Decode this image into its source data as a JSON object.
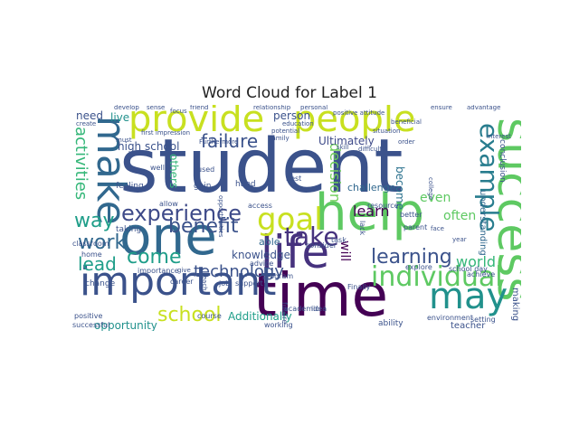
{
  "title": "Word Cloud for Label 1",
  "chart_data": {
    "type": "wordcloud",
    "title": "Word Cloud for Label 1",
    "background": "#ffffff",
    "colormap": "viridis",
    "words": [
      {
        "text": "student",
        "color": "#3b528b"
      },
      {
        "text": "time",
        "color": "#440154"
      },
      {
        "text": "help",
        "color": "#5ec962"
      },
      {
        "text": "one",
        "color": "#31688e"
      },
      {
        "text": "people",
        "color": "#c8e020"
      },
      {
        "text": "important",
        "color": "#3b528b"
      },
      {
        "text": "success",
        "color": "#5ec962"
      },
      {
        "text": "provide",
        "color": "#c8e020"
      },
      {
        "text": "make",
        "color": "#31688e"
      },
      {
        "text": "life",
        "color": "#46327e"
      },
      {
        "text": "individual",
        "color": "#5ec962"
      },
      {
        "text": "example",
        "color": "#287d8e"
      },
      {
        "text": "goal",
        "color": "#c8e020"
      },
      {
        "text": "may",
        "color": "#21918c"
      },
      {
        "text": "experience",
        "color": "#3e4a89"
      },
      {
        "text": "failure",
        "color": "#3b528b"
      },
      {
        "text": "take",
        "color": "#46327e"
      },
      {
        "text": "school",
        "color": "#c8e020"
      },
      {
        "text": "benefit",
        "color": "#3b528b"
      },
      {
        "text": "come",
        "color": "#1f9e89"
      },
      {
        "text": "work",
        "color": "#31688e"
      },
      {
        "text": "lead",
        "color": "#1f9e89"
      },
      {
        "text": "way",
        "color": "#1f9e89"
      },
      {
        "text": "learning",
        "color": "#3b528b"
      },
      {
        "text": "activities",
        "color": "#35b779"
      },
      {
        "text": "technology",
        "color": "#3b528b"
      },
      {
        "text": "decision",
        "color": "#6ece58"
      },
      {
        "text": "learn",
        "color": "#440154"
      },
      {
        "text": "world",
        "color": "#35b779"
      },
      {
        "text": "Additionally",
        "color": "#1f9e89"
      },
      {
        "text": "Ultimately",
        "color": "#3e4a89"
      },
      {
        "text": "opportunity",
        "color": "#21918c"
      },
      {
        "text": "knowledge",
        "color": "#3b528b"
      },
      {
        "text": "high school",
        "color": "#3b528b"
      },
      {
        "text": "will",
        "color": "#440154"
      },
      {
        "text": "often",
        "color": "#5ec962"
      },
      {
        "text": "need",
        "color": "#3b528b"
      },
      {
        "text": "live",
        "color": "#21918c"
      },
      {
        "text": "person",
        "color": "#3b528b"
      },
      {
        "text": "even",
        "color": "#5ec962"
      },
      {
        "text": "become",
        "color": "#2c728e"
      },
      {
        "text": "others",
        "color": "#35b779"
      },
      {
        "text": "challenge",
        "color": "#31688e"
      },
      {
        "text": "making",
        "color": "#3b528b"
      },
      {
        "text": "understanding",
        "color": "#31688e"
      },
      {
        "text": "teacher",
        "color": "#3b528b"
      },
      {
        "text": "able",
        "color": "#31688e"
      },
      {
        "text": "conclusion",
        "color": "#3b528b"
      },
      {
        "text": "gain",
        "color": "#3b528b"
      },
      {
        "text": "hand",
        "color": "#3b528b"
      },
      {
        "text": "feeling",
        "color": "#3b528b"
      },
      {
        "text": "taking",
        "color": "#3b528b"
      },
      {
        "text": "classroom",
        "color": "#3b528b"
      },
      {
        "text": "home",
        "color": "#3b528b"
      },
      {
        "text": "change",
        "color": "#3b528b"
      },
      {
        "text": "positive",
        "color": "#3b528b"
      },
      {
        "text": "successful",
        "color": "#3b528b"
      },
      {
        "text": "future",
        "color": "#3b528b"
      },
      {
        "text": "program",
        "color": "#3b528b"
      },
      {
        "text": "support",
        "color": "#3b528b"
      },
      {
        "text": "advice",
        "color": "#3b528b"
      },
      {
        "text": "job",
        "color": "#3b528b"
      },
      {
        "text": "career",
        "color": "#3b528b"
      },
      {
        "text": "importance",
        "color": "#3b528b"
      },
      {
        "text": "course",
        "color": "#3b528b"
      },
      {
        "text": "working",
        "color": "#3b528b"
      },
      {
        "text": "academic",
        "color": "#3b528b"
      },
      {
        "text": "idea",
        "color": "#3b528b"
      },
      {
        "text": "Finally",
        "color": "#3b528b"
      },
      {
        "text": "ability",
        "color": "#3b528b"
      },
      {
        "text": "explore",
        "color": "#3b528b"
      },
      {
        "text": "school day",
        "color": "#3b528b"
      },
      {
        "text": "environment",
        "color": "#3b528b"
      },
      {
        "text": "setting",
        "color": "#3b528b"
      },
      {
        "text": "achieve",
        "color": "#3b528b"
      },
      {
        "text": "parent",
        "color": "#3b528b"
      },
      {
        "text": "better",
        "color": "#3b528b"
      },
      {
        "text": "resource",
        "color": "#3b528b"
      },
      {
        "text": "task",
        "color": "#3b528b"
      },
      {
        "text": "lack",
        "color": "#3b528b"
      },
      {
        "text": "consider",
        "color": "#3b528b"
      },
      {
        "text": "access",
        "color": "#3b528b"
      },
      {
        "text": "best",
        "color": "#3b528b"
      },
      {
        "text": "allow",
        "color": "#3b528b"
      },
      {
        "text": "used",
        "color": "#3b528b"
      },
      {
        "text": "well",
        "color": "#3b528b"
      },
      {
        "text": "must",
        "color": "#3b528b"
      },
      {
        "text": "first impression",
        "color": "#3b528b"
      },
      {
        "text": "develop",
        "color": "#3b528b"
      },
      {
        "text": "sense",
        "color": "#3b528b"
      },
      {
        "text": "focus",
        "color": "#3b528b"
      },
      {
        "text": "friend",
        "color": "#3b528b"
      },
      {
        "text": "relationship",
        "color": "#3b528b"
      },
      {
        "text": "personal",
        "color": "#3b528b"
      },
      {
        "text": "positive attitude",
        "color": "#3b528b"
      },
      {
        "text": "ensure",
        "color": "#3b528b"
      },
      {
        "text": "advantage",
        "color": "#3b528b"
      },
      {
        "text": "education",
        "color": "#3b528b"
      },
      {
        "text": "potential",
        "color": "#3b528b"
      },
      {
        "text": "family",
        "color": "#3b528b"
      },
      {
        "text": "skill",
        "color": "#3b528b"
      },
      {
        "text": "difficult",
        "color": "#3b528b"
      },
      {
        "text": "situation",
        "color": "#3b528b"
      },
      {
        "text": "order",
        "color": "#3b528b"
      },
      {
        "text": "beneficial",
        "color": "#3b528b"
      },
      {
        "text": "interest",
        "color": "#3b528b"
      },
      {
        "text": "Furthermore",
        "color": "#3b528b"
      },
      {
        "text": "opportunities",
        "color": "#3b528b"
      },
      {
        "text": "reach",
        "color": "#3b528b"
      },
      {
        "text": "create",
        "color": "#3b528b"
      },
      {
        "text": "college",
        "color": "#3b528b"
      },
      {
        "text": "face",
        "color": "#3b528b"
      },
      {
        "text": "year",
        "color": "#3b528b"
      },
      {
        "text": "give",
        "color": "#3b528b"
      }
    ]
  }
}
